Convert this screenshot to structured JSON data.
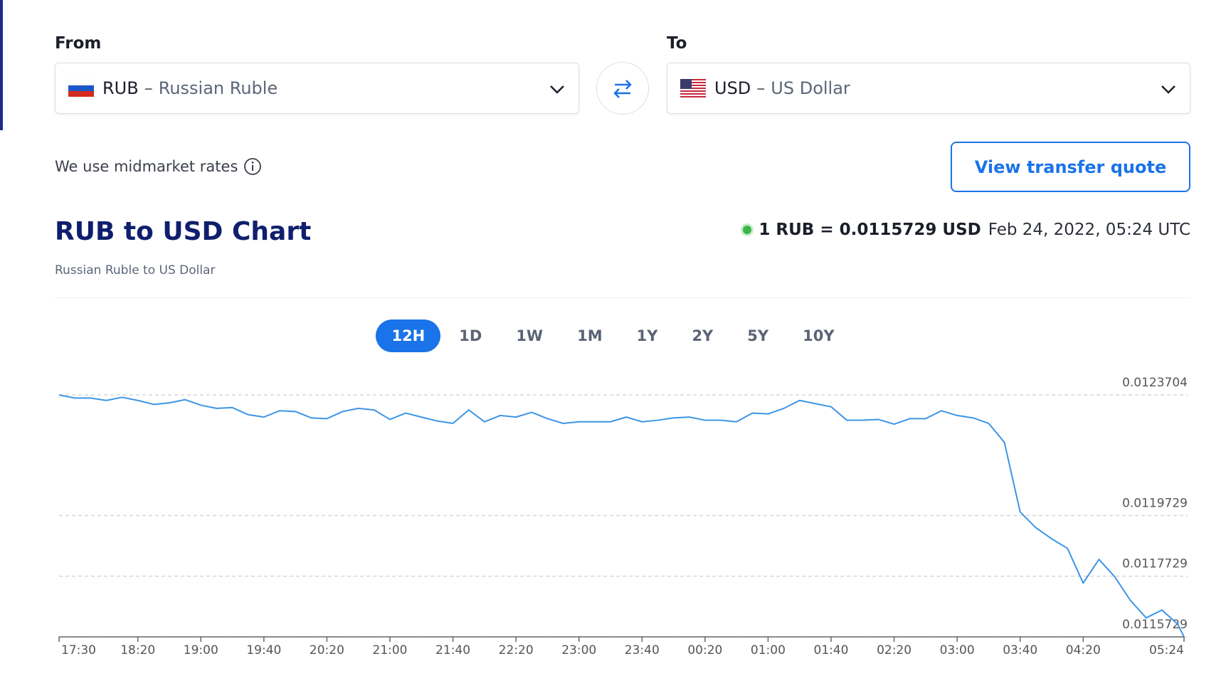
{
  "from": {
    "label": "From",
    "code": "RUB",
    "separator": "–",
    "name": "Russian Ruble"
  },
  "to": {
    "label": "To",
    "code": "USD",
    "separator": "–",
    "name": "US Dollar"
  },
  "rates_note": "We use midmarket rates",
  "button": "View transfer quote",
  "chart_data": {
    "type": "line",
    "title": "RUB to USD Chart",
    "subtitle": "Russian Ruble to US Dollar",
    "rate": "1 RUB = 0.0115729 USD",
    "timestamp": "Feb 24, 2022, 05:24 UTC",
    "ranges": [
      "12H",
      "1D",
      "1W",
      "1M",
      "1Y",
      "2Y",
      "5Y",
      "10Y"
    ],
    "active_range": "12H",
    "color": "#3d95e6",
    "grid": true,
    "x": [
      "17:30",
      "17:40",
      "17:50",
      "18:00",
      "18:10",
      "18:20",
      "18:30",
      "18:40",
      "18:50",
      "19:00",
      "19:10",
      "19:20",
      "19:30",
      "19:40",
      "19:50",
      "20:00",
      "20:10",
      "20:20",
      "20:30",
      "20:40",
      "20:50",
      "21:00",
      "21:10",
      "21:20",
      "21:30",
      "21:40",
      "21:50",
      "22:00",
      "22:10",
      "22:20",
      "22:30",
      "22:40",
      "22:50",
      "23:00",
      "23:10",
      "23:20",
      "23:30",
      "23:40",
      "23:50",
      "00:00",
      "00:10",
      "00:20",
      "00:30",
      "00:40",
      "00:50",
      "01:00",
      "01:10",
      "01:20",
      "01:30",
      "01:40",
      "01:50",
      "02:00",
      "02:10",
      "02:20",
      "02:30",
      "02:40",
      "02:50",
      "03:00",
      "03:10",
      "03:20",
      "03:30",
      "03:40",
      "03:50",
      "04:00",
      "04:10",
      "04:20",
      "04:30",
      "04:40",
      "04:50",
      "05:00",
      "05:10",
      "05:20",
      "05:24"
    ],
    "values": [
      0.0123704,
      0.01236,
      0.01236,
      0.0123522,
      0.0123626,
      0.0123522,
      0.0123391,
      0.0123443,
      0.0123548,
      0.0123365,
      0.0123261,
      0.0123287,
      0.0123052,
      0.0122974,
      0.0123183,
      0.0123157,
      0.0122948,
      0.0122922,
      0.0123157,
      0.0123261,
      0.0123209,
      0.0122896,
      0.0123105,
      0.0122974,
      0.0122844,
      0.0122766,
      0.0123209,
      0.0122818,
      0.0123026,
      0.0122974,
      0.0123131,
      0.0122922,
      0.0122766,
      0.0122818,
      0.0122818,
      0.0122818,
      0.0122974,
      0.0122818,
      0.012287,
      0.0122948,
      0.0122974,
      0.012287,
      0.012287,
      0.0122818,
      0.0123105,
      0.0123079,
      0.0123261,
      0.0123522,
      0.0123417,
      0.0123313,
      0.012287,
      0.012287,
      0.0122896,
      0.012274,
      0.0122922,
      0.0122922,
      0.0123183,
      0.0123026,
      0.0122948,
      0.0122766,
      0.012214,
      0.0119847,
      0.0119326,
      0.0118961,
      0.0118648,
      0.0117502,
      0.0118284,
      0.011771,
      0.0116928,
      0.0116355,
      0.0116615,
      0.0116146,
      0.0115729
    ],
    "xlim": [
      "17:30",
      "05:24"
    ],
    "ylim": [
      0.0115729,
      0.0123704
    ],
    "xticks": [
      "17:30",
      "18:20",
      "19:00",
      "19:40",
      "20:20",
      "21:00",
      "21:40",
      "22:20",
      "23:00",
      "23:40",
      "00:20",
      "01:00",
      "01:40",
      "02:20",
      "03:00",
      "03:40",
      "04:20",
      "05:24"
    ],
    "yticks": [
      0.0123704,
      0.0119729,
      0.0117729,
      0.0115729
    ]
  }
}
